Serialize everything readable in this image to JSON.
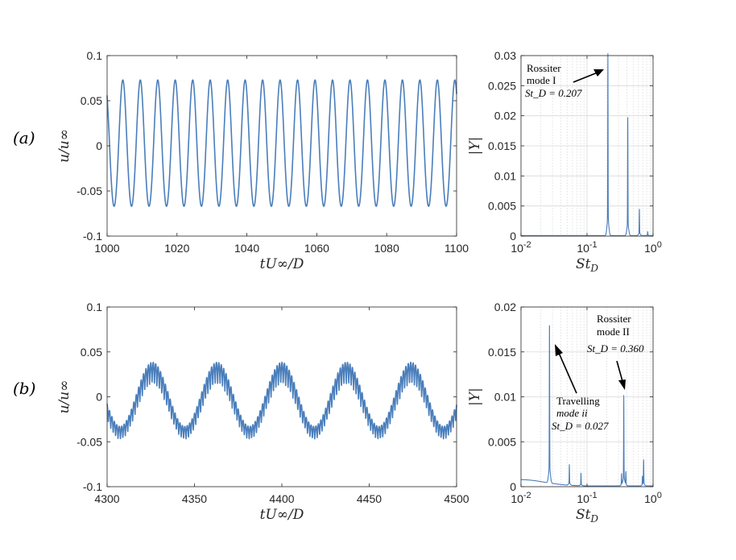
{
  "panel_labels": [
    "(a)",
    "(b)"
  ],
  "colors": {
    "series": "#4a7ebb",
    "axis": "#262626",
    "grid": "#d9d9d9"
  },
  "chart_data": [
    {
      "id": "a_time",
      "type": "line",
      "xlabel": "tU∞/D",
      "ylabel": "u/u∞",
      "xlim": [
        1000,
        1100
      ],
      "ylim": [
        -0.1,
        0.1
      ],
      "xticks": [
        "1000",
        "1020",
        "1040",
        "1060",
        "1080",
        "1100"
      ],
      "yticks": [
        "-0.1",
        "-0.05",
        "0",
        "0.05",
        "0.1"
      ],
      "signal": {
        "period": 5.0,
        "phase_x": 1004.5,
        "max": 0.063,
        "min": -0.077,
        "secondary": 0.003,
        "start_value": 0.056
      }
    },
    {
      "id": "a_spec",
      "type": "line",
      "xscale": "log",
      "xlabel": "St_D",
      "ylabel": "|Y|",
      "xlim": [
        0.01,
        1
      ],
      "ylim": [
        0,
        0.03
      ],
      "xticks": [
        "10^-2",
        "10^-1",
        "10^0"
      ],
      "yticks": [
        "0",
        "0.005",
        "0.01",
        "0.015",
        "0.02",
        "0.025",
        "0.03"
      ],
      "grid": true,
      "peaks": [
        {
          "x": 0.207,
          "y": 0.0275
        },
        {
          "x": 0.414,
          "y": 0.018
        },
        {
          "x": 0.621,
          "y": 0.004
        },
        {
          "x": 0.83,
          "y": 0.0006
        }
      ],
      "annotations": [
        {
          "lines": [
            "Rossiter",
            "mode I"
          ],
          "math": "St_D = 0.207"
        }
      ]
    },
    {
      "id": "b_time",
      "type": "line",
      "xlabel": "tU∞/D",
      "ylabel": "u/u∞",
      "xlim": [
        4300,
        4500
      ],
      "ylim": [
        -0.1,
        0.1
      ],
      "xticks": [
        "4300",
        "4350",
        "4400",
        "4450",
        "4500"
      ],
      "yticks": [
        "-0.1",
        "-0.05",
        "0",
        "0.05",
        "0.1"
      ],
      "signal": {
        "slow_period": 37.0,
        "fast_period": 2.78,
        "slow_amp": 0.034,
        "fast_amp": 0.017,
        "offset": -0.004,
        "phase_x": 4326
      }
    },
    {
      "id": "b_spec",
      "type": "line",
      "xscale": "log",
      "xlabel": "St_D",
      "ylabel": "|Y|",
      "xlim": [
        0.01,
        1
      ],
      "ylim": [
        0,
        0.02
      ],
      "xticks": [
        "10^-2",
        "10^-1",
        "10^0"
      ],
      "yticks": [
        "0",
        "0.005",
        "0.01",
        "0.015",
        "0.02"
      ],
      "grid": true,
      "peaks": [
        {
          "x": 0.027,
          "y": 0.0164
        },
        {
          "x": 0.054,
          "y": 0.0021
        },
        {
          "x": 0.081,
          "y": 0.0013
        },
        {
          "x": 0.36,
          "y": 0.0092
        },
        {
          "x": 0.333,
          "y": 0.0012
        },
        {
          "x": 0.387,
          "y": 0.0014
        },
        {
          "x": 0.72,
          "y": 0.0026
        },
        {
          "x": 0.69,
          "y": 0.0009
        }
      ],
      "annotations": [
        {
          "lines": [
            "Rossiter",
            "mode II"
          ],
          "math": "St_D = 0.360"
        },
        {
          "lines": [
            "Travelling",
            "mode ii"
          ],
          "math": "St_D = 0.027"
        }
      ]
    }
  ]
}
